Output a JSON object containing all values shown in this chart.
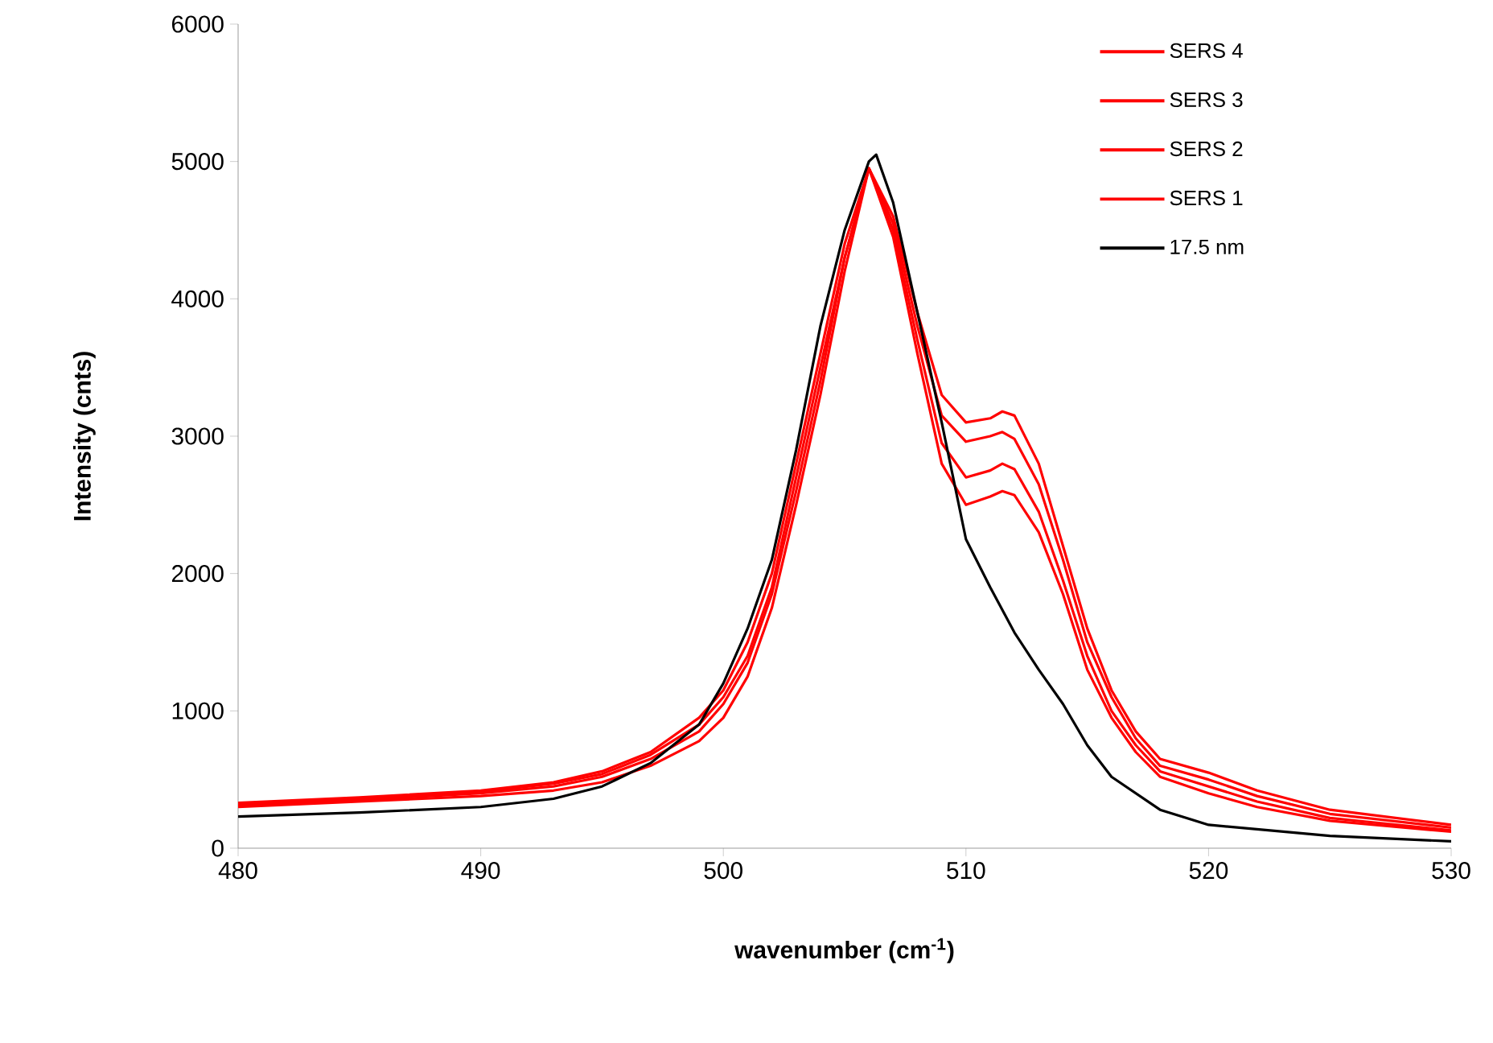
{
  "chart_data": {
    "type": "line",
    "xlabel": "wavenumber (cm$^{-1}$)",
    "ylabel": "Intensity (cnts)",
    "xlim": [
      480,
      530
    ],
    "xticks": [
      480,
      490,
      500,
      510,
      520,
      530
    ],
    "ylim": [
      0,
      6000
    ],
    "yticks": [
      0,
      1000,
      2000,
      3000,
      4000,
      5000,
      6000
    ],
    "grid": false,
    "legend": "top right",
    "marker": "none",
    "line_style": "solid",
    "series": [
      {
        "name": "SERS 4",
        "color": "#ff0000",
        "x": [
          480,
          485,
          490,
          493,
          495,
          497,
          499,
          500,
          501,
          502,
          503,
          504,
          505,
          506,
          507,
          508,
          509,
          510,
          511,
          511.5,
          512,
          513,
          514,
          515,
          516,
          517,
          518,
          520,
          522,
          525,
          530
        ],
        "values": [
          330,
          370,
          420,
          480,
          560,
          700,
          950,
          1150,
          1500,
          2000,
          2800,
          3600,
          4400,
          4950,
          4600,
          3900,
          3300,
          3100,
          3130,
          3180,
          3150,
          2800,
          2200,
          1600,
          1150,
          850,
          650,
          550,
          420,
          280,
          170
        ]
      },
      {
        "name": "SERS 3",
        "color": "#ff0000",
        "x": [
          480,
          485,
          490,
          493,
          495,
          497,
          499,
          500,
          501,
          502,
          503,
          504,
          505,
          506,
          507,
          508,
          509,
          510,
          511,
          511.5,
          512,
          513,
          514,
          515,
          516,
          517,
          518,
          520,
          522,
          525,
          530
        ],
        "values": [
          320,
          360,
          410,
          470,
          540,
          680,
          900,
          1100,
          1400,
          1900,
          2700,
          3500,
          4300,
          4950,
          4550,
          3800,
          3150,
          2960,
          3000,
          3030,
          2980,
          2650,
          2100,
          1500,
          1100,
          800,
          600,
          500,
          380,
          250,
          150
        ]
      },
      {
        "name": "SERS 2",
        "color": "#ff0000",
        "x": [
          480,
          485,
          490,
          493,
          495,
          497,
          499,
          500,
          501,
          502,
          503,
          504,
          505,
          506,
          507,
          508,
          509,
          510,
          511,
          511.5,
          512,
          513,
          514,
          515,
          516,
          517,
          518,
          520,
          522,
          525,
          530
        ],
        "values": [
          310,
          350,
          400,
          450,
          520,
          650,
          850,
          1050,
          1350,
          1850,
          2600,
          3400,
          4300,
          4950,
          4500,
          3700,
          2950,
          2700,
          2750,
          2800,
          2760,
          2450,
          1950,
          1400,
          1000,
          750,
          560,
          450,
          340,
          220,
          130
        ]
      },
      {
        "name": "SERS 1",
        "color": "#ff0000",
        "x": [
          480,
          485,
          490,
          493,
          495,
          497,
          499,
          500,
          501,
          502,
          503,
          504,
          505,
          506,
          507,
          508,
          509,
          510,
          511,
          511.5,
          512,
          513,
          514,
          515,
          516,
          517,
          518,
          520,
          522,
          525,
          530
        ],
        "values": [
          300,
          340,
          380,
          420,
          480,
          600,
          780,
          950,
          1250,
          1750,
          2500,
          3300,
          4200,
          4950,
          4450,
          3600,
          2800,
          2500,
          2560,
          2600,
          2570,
          2300,
          1850,
          1300,
          950,
          700,
          520,
          400,
          300,
          200,
          120
        ]
      },
      {
        "name": "17.5 nm",
        "color": "#000000",
        "x": [
          480,
          485,
          490,
          493,
          495,
          497,
          499,
          500,
          501,
          502,
          503,
          504,
          505,
          506,
          506.3,
          507,
          508,
          509,
          510,
          511,
          512,
          513,
          514,
          515,
          516,
          518,
          520,
          525,
          530
        ],
        "values": [
          230,
          260,
          300,
          360,
          450,
          620,
          900,
          1200,
          1600,
          2100,
          2900,
          3800,
          4500,
          5000,
          5050,
          4700,
          3900,
          3100,
          2250,
          1900,
          1570,
          1300,
          1050,
          750,
          520,
          280,
          170,
          90,
          50
        ]
      }
    ]
  }
}
